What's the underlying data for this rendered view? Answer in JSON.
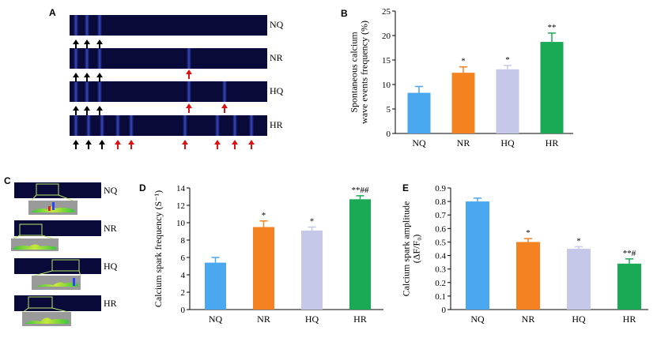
{
  "panels": {
    "A": {
      "label": "A",
      "rows": [
        {
          "name": "NQ",
          "black_arrows": 3,
          "red_arrows": 0
        },
        {
          "name": "NR",
          "black_arrows": 3,
          "red_arrows": 1
        },
        {
          "name": "HQ",
          "black_arrows": 3,
          "red_arrows": 2
        },
        {
          "name": "HR",
          "black_arrows": 3,
          "red_arrows": 6
        }
      ]
    },
    "C": {
      "label": "C",
      "rows": [
        "NQ",
        "NR",
        "HQ",
        "HR"
      ]
    }
  },
  "chart_data": [
    {
      "panel": "B",
      "type": "bar",
      "categories": [
        "NQ",
        "NR",
        "HQ",
        "HR"
      ],
      "values": [
        8.3,
        12.4,
        13.1,
        18.7
      ],
      "errors": [
        1.3,
        1.2,
        0.8,
        1.8
      ],
      "annotations": [
        "",
        "*",
        "*",
        "**"
      ],
      "colors": [
        "#4aa8f0",
        "#f58220",
        "#c5c8e8",
        "#1aaa55"
      ],
      "ylabel": "Spontaneous calcium wave events frequency (%)",
      "ylabel_lines": [
        "Spontaneous calcium",
        "wave events frequency (%)"
      ],
      "ylim": [
        0,
        25
      ],
      "yticks": [
        "0",
        "5",
        "10",
        "15",
        "20",
        "25"
      ],
      "tick_values": [
        0,
        5,
        10,
        15,
        20,
        25
      ]
    },
    {
      "panel": "D",
      "type": "bar",
      "categories": [
        "NQ",
        "NR",
        "HQ",
        "HR"
      ],
      "values": [
        5.4,
        9.5,
        9.1,
        12.7
      ],
      "errors": [
        0.6,
        0.7,
        0.4,
        0.4
      ],
      "annotations": [
        "",
        "*",
        "*",
        "**##"
      ],
      "colors": [
        "#4aa8f0",
        "#f58220",
        "#c5c8e8",
        "#1aaa55"
      ],
      "ylabel": "Calcium spark frequency (S⁻¹)",
      "ylabel_lines": [
        "Calcium spark frequency (S⁻¹)"
      ],
      "ylim": [
        0,
        14
      ],
      "yticks": [
        "0",
        "2",
        "4",
        "6",
        "8",
        "10",
        "12",
        "14"
      ],
      "tick_values": [
        0,
        2,
        4,
        6,
        8,
        10,
        12,
        14
      ]
    },
    {
      "panel": "E",
      "type": "bar",
      "categories": [
        "NQ",
        "NR",
        "HQ",
        "HR"
      ],
      "values": [
        0.8,
        0.5,
        0.45,
        0.34
      ],
      "errors": [
        0.025,
        0.025,
        0.015,
        0.035
      ],
      "annotations": [
        "",
        "*",
        "*",
        "**#"
      ],
      "colors": [
        "#4aa8f0",
        "#f58220",
        "#c5c8e8",
        "#1aaa55"
      ],
      "ylabel": "Calcium spark amplitude (ΔF/F₀)",
      "ylabel_lines": [
        "Calcium spark amplitude",
        "(ΔF/F₀)"
      ],
      "ylim": [
        0,
        0.9
      ],
      "yticks": [
        "0",
        "0.1",
        "0.2",
        "0.3",
        "0.4",
        "0.5",
        "0.6",
        "0.7",
        "0.8",
        "0.9"
      ],
      "tick_values": [
        0,
        0.1,
        0.2,
        0.3,
        0.4,
        0.5,
        0.6,
        0.7,
        0.8,
        0.9
      ]
    }
  ]
}
